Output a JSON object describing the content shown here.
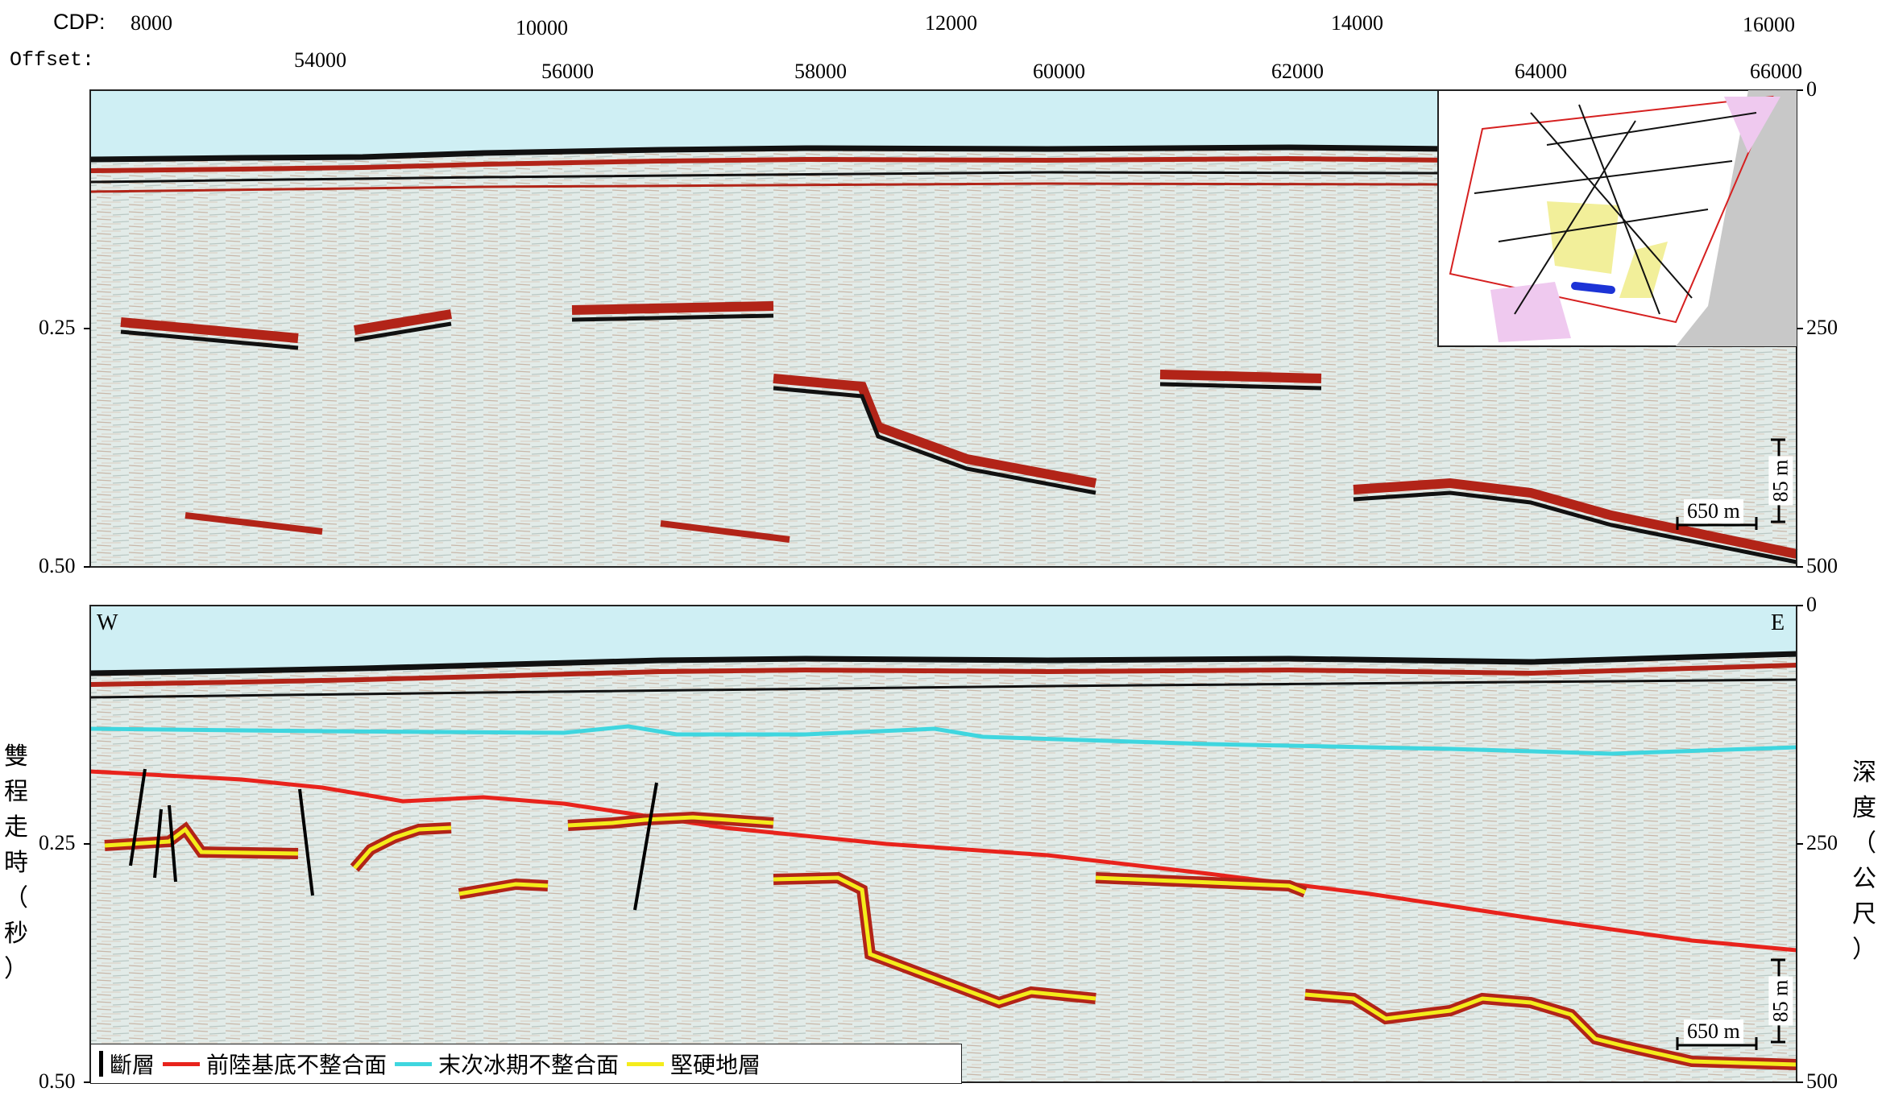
{
  "top_axis": {
    "cdp_label": "CDP:",
    "offset_label": "Offset:",
    "cdp_ticks": [
      "8000",
      "10000",
      "12000",
      "14000",
      "16000"
    ],
    "offset_ticks": [
      "54000",
      "56000",
      "58000",
      "60000",
      "62000",
      "64000",
      "66000"
    ]
  },
  "left_axis": {
    "ticks": [
      "0.25",
      "0.50"
    ],
    "title_chars": [
      "雙",
      "程",
      "走",
      "時",
      "（",
      "秒",
      "）"
    ]
  },
  "right_axis": {
    "top_panel_ticks": [
      "0",
      "250",
      "500"
    ],
    "bottom_panel_ticks": [
      "0",
      "250",
      "500"
    ],
    "title_chars": [
      "深",
      "度",
      "（",
      "公",
      "尺",
      "）"
    ]
  },
  "panel_bottom": {
    "west_label": "W",
    "east_label": "E"
  },
  "scale_bar": {
    "vertical": "85 m",
    "horizontal": "650 m"
  },
  "legend": {
    "items": [
      {
        "label": "斷層",
        "color": "#000000"
      },
      {
        "label": "前陸基底不整合面",
        "color": "#e8231c"
      },
      {
        "label": "末次冰期不整合面",
        "color": "#3fd6df"
      },
      {
        "label": "堅硬地層",
        "color": "#f4ec1b"
      }
    ]
  },
  "colors": {
    "water": "#cfeff4",
    "seismic_bg": "#dfe9e6",
    "reflector_red": "#b22418",
    "reflector_black": "#111111"
  }
}
